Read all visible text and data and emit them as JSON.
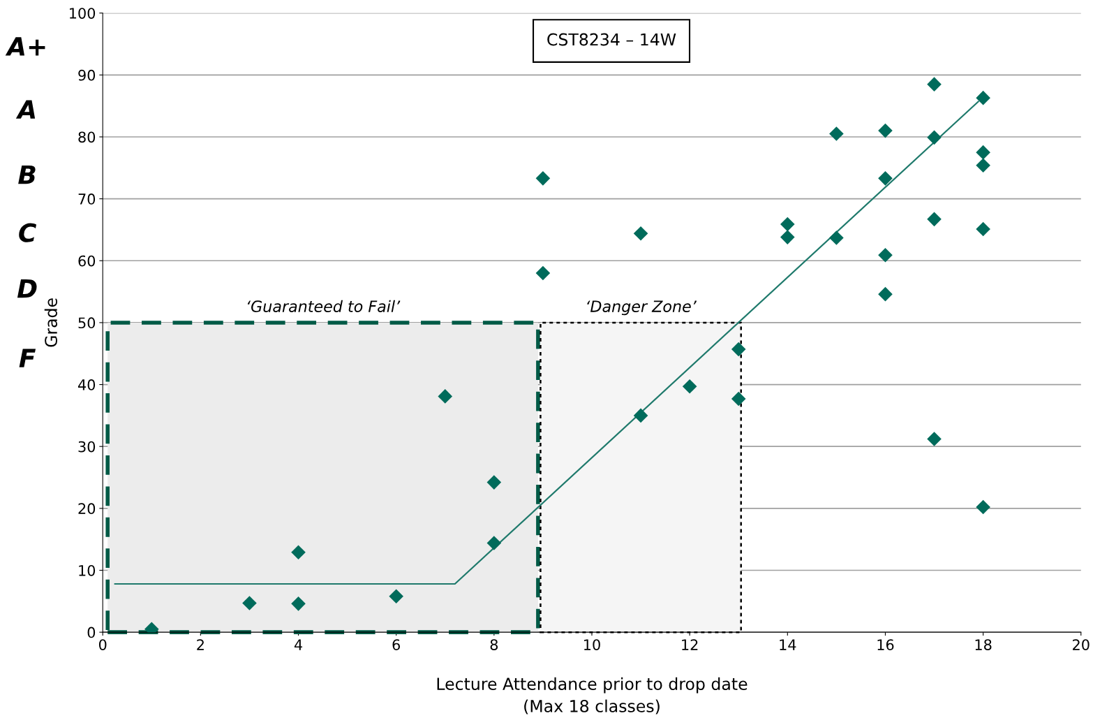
{
  "chart_data": {
    "type": "scatter",
    "title": "CST8234 – 14W",
    "xlabel": "Lecture Attendance prior to drop date\n(Max 18 classes)",
    "ylabel": "Grade",
    "series": [
      {
        "color": "#006b5b",
        "marker": "diamond",
        "x": [
          1,
          3,
          4,
          4,
          6,
          7,
          8,
          8,
          9,
          9,
          11,
          11,
          12,
          13,
          13,
          14,
          14,
          15,
          15,
          16,
          16,
          16,
          16,
          17,
          17,
          17,
          17,
          18,
          18,
          18,
          18,
          18
        ],
        "values": [
          0.5,
          4.7,
          4.6,
          12.9,
          5.8,
          38.1,
          24.2,
          14.4,
          73.3,
          58.0,
          64.4,
          35.0,
          39.7,
          45.7,
          37.7,
          65.9,
          63.8,
          80.5,
          63.7,
          81.0,
          73.3,
          60.9,
          54.6,
          88.5,
          79.9,
          66.7,
          31.2,
          86.3,
          77.5,
          75.4,
          65.1,
          20.2
        ]
      },
      {
        "type": "line",
        "color": "#1f7a6c",
        "x": [
          0.25,
          7.2,
          17.9
        ],
        "values": [
          7.8,
          7.8,
          85.7
        ]
      }
    ],
    "bands": [
      {
        "axis": "x",
        "from": 0.1,
        "to": 8.9,
        "label": "‘Guaranteed to Fail’",
        "color": "#ececec"
      },
      {
        "axis": "x",
        "from": 8.95,
        "to": 13.05,
        "label": "‘Danger Zone’",
        "color": "#f5f5f5"
      }
    ],
    "annotations": [
      "A+",
      "A",
      "B",
      "C",
      "D",
      "F"
    ],
    "xlim": [
      0,
      20
    ],
    "xticks": [
      0,
      2,
      4,
      6,
      8,
      10,
      12,
      14,
      16,
      18,
      20
    ],
    "ylim": [
      0,
      100
    ],
    "yticks": [
      0,
      10,
      20,
      30,
      40,
      50,
      60,
      70,
      80,
      90,
      100
    ],
    "grid": "y"
  }
}
